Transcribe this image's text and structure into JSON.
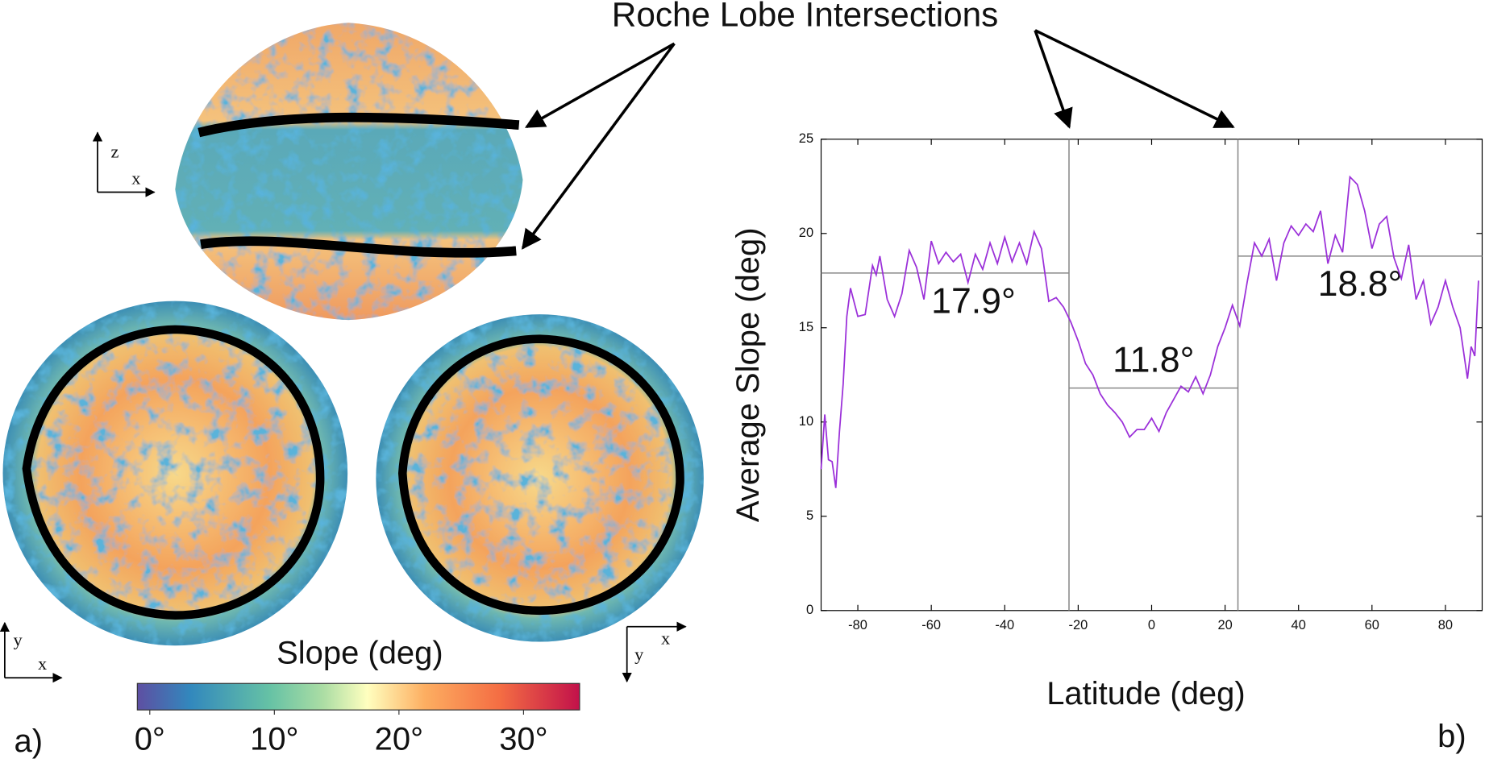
{
  "figure": {
    "callout": "Roche Lobe Intersections",
    "panel_labels": [
      "a)",
      "b)"
    ],
    "axis_glyphs": [
      "z",
      "x",
      "y",
      "x",
      "y",
      "x"
    ]
  },
  "chart_data": [
    {
      "type": "line",
      "xlabel": "Latitude (deg)",
      "ylabel": "Average Slope (deg)",
      "color": "#9b30d9",
      "x": [
        -90,
        -89,
        -88,
        -87,
        -86,
        -85,
        -84,
        -83,
        -82,
        -80,
        -78,
        -76,
        -75,
        -74,
        -72,
        -70,
        -68,
        -66,
        -64,
        -62,
        -60,
        -58,
        -56,
        -54,
        -52,
        -50,
        -48,
        -46,
        -44,
        -42,
        -40,
        -38,
        -36,
        -34,
        -32,
        -30,
        -28,
        -26,
        -24,
        -22,
        -20,
        -18,
        -16,
        -14,
        -12,
        -10,
        -8,
        -6,
        -4,
        -2,
        0,
        2,
        4,
        6,
        8,
        10,
        12,
        14,
        16,
        18,
        20,
        22,
        24,
        26,
        28,
        30,
        32,
        34,
        36,
        38,
        40,
        42,
        44,
        46,
        48,
        50,
        52,
        54,
        56,
        58,
        60,
        62,
        64,
        66,
        68,
        70,
        72,
        74,
        76,
        78,
        80,
        82,
        84,
        86,
        87,
        88,
        89
      ],
      "values": [
        7.5,
        10.4,
        8,
        7.9,
        6.5,
        9.5,
        12,
        15.6,
        17.1,
        15.6,
        15.7,
        18.3,
        17.8,
        18.8,
        16.5,
        15.6,
        16.8,
        19.1,
        18.2,
        16.5,
        19.6,
        18.4,
        19,
        18.5,
        18.9,
        17.4,
        18.9,
        18.1,
        19.5,
        18.4,
        19.8,
        18.5,
        19.5,
        18.4,
        20.1,
        19.2,
        16.4,
        16.6,
        16.1,
        15.3,
        14.3,
        13.1,
        12.5,
        11.5,
        10.9,
        10.5,
        10.0,
        9.2,
        9.6,
        9.6,
        10.2,
        9.5,
        10.5,
        11.2,
        11.9,
        11.6,
        12.4,
        11.5,
        12.5,
        14,
        15,
        16.2,
        15.1,
        17.4,
        19.5,
        18.8,
        19.7,
        17.5,
        19.5,
        20.4,
        19.9,
        20.5,
        20.1,
        21.2,
        18.4,
        19.9,
        19,
        23,
        22.6,
        21.2,
        19.2,
        20.5,
        20.9,
        18.7,
        17.6,
        19.4,
        16.5,
        17.5,
        15.2,
        16.1,
        17.5,
        16.1,
        15,
        12.3,
        14,
        13.5,
        17.5
      ],
      "xlim": [
        -90,
        90
      ],
      "ylim": [
        0,
        25
      ],
      "xticks": [
        -80,
        -60,
        -40,
        -20,
        0,
        20,
        40,
        60,
        80
      ],
      "yticks": [
        0,
        5,
        10,
        15,
        20,
        25
      ],
      "vlines": [
        -22.5,
        23.5
      ],
      "regions": [
        {
          "from": -90,
          "to": -22.5,
          "mean": 17.9,
          "label": "17.9°"
        },
        {
          "from": -22.5,
          "to": 23.5,
          "mean": 11.8,
          "label": "11.8°"
        },
        {
          "from": 23.5,
          "to": 90,
          "mean": 18.8,
          "label": "18.8°"
        }
      ]
    },
    {
      "type": "colorbar",
      "label": "Slope (deg)",
      "xlim": [
        -1,
        34.5
      ],
      "xticks": [
        {
          "value": 0,
          "label": "0°"
        },
        {
          "value": 10,
          "label": "10°"
        },
        {
          "value": 20,
          "label": "20°"
        },
        {
          "value": 30,
          "label": "30°"
        }
      ]
    }
  ]
}
